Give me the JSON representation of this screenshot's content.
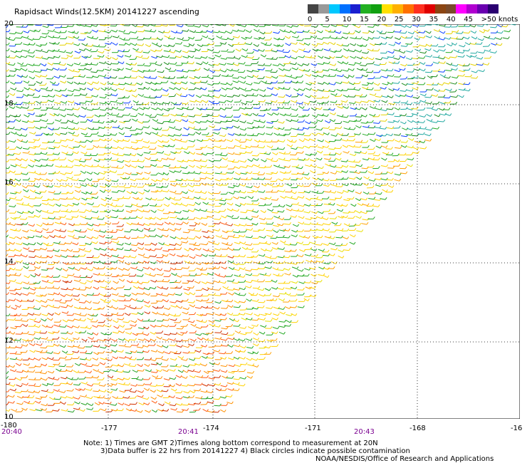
{
  "title": "Rapidsact Winds(12.5KM) 20141227 ascending",
  "legend": {
    "colors": [
      "#444444",
      "#999999",
      "#00c8ff",
      "#0070ff",
      "#1a20d0",
      "#22b022",
      "#11a011",
      "#ffe000",
      "#ffb000",
      "#ff7000",
      "#ff3020",
      "#e00000",
      "#8b4513",
      "#7a4a2a",
      "#ff00ff",
      "#b000d0",
      "#6a00b0",
      "#2a0070"
    ],
    "labels": [
      "0",
      "5",
      "10",
      "15",
      "20",
      "25",
      "30",
      "35",
      "40",
      "45",
      ">50 knots"
    ]
  },
  "axes": {
    "lon_labels": [
      "-180",
      "-177",
      "-174",
      "-171",
      "-168",
      "-16"
    ],
    "lat_labels": [
      "20",
      "18",
      "16",
      "14",
      "12",
      "10"
    ],
    "time_labels": [
      "20:40",
      "20:41",
      "20:43"
    ]
  },
  "notes": {
    "line1": "Note: 1) Times are GMT 2)Times along bottom correspond to measurement at 20N",
    "line2": "3)Data buffer is 22 hrs from 20141227 4) Black circles indicate possible contamination",
    "credit": "NOAA/NESDIS/Office of Research and Applications"
  }
}
